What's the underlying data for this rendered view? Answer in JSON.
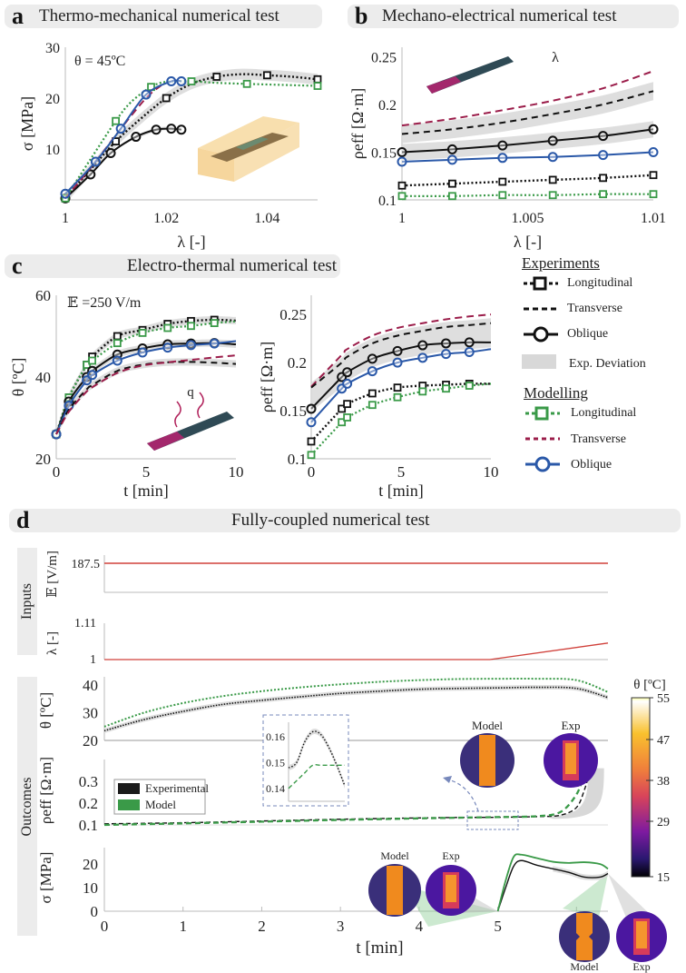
{
  "headers": {
    "a": {
      "letter": "a",
      "title": "Thermo-mechanical numerical test"
    },
    "b": {
      "letter": "b",
      "title": "Mechano-electrical numerical test"
    },
    "c": {
      "letter": "c",
      "title": "Electro-thermal numerical test"
    },
    "d": {
      "letter": "d",
      "title": "Fully-coupled numerical test"
    }
  },
  "legend": {
    "experiments_title": "Experiments",
    "modelling_title": "Modelling",
    "exp_items": [
      "Longitudinal",
      "Transverse",
      "Oblique",
      "Exp. Deviation"
    ],
    "model_items": [
      "Longitudinal",
      "Transverse",
      "Oblique"
    ]
  },
  "colors": {
    "exp": "#111111",
    "model_long": "#3a9a48",
    "model_trans": "#9b1d4a",
    "model_obl": "#2a58a8",
    "deviation": "#d8d8d8",
    "input": "#d0403a",
    "inset_box": "#7788bb"
  },
  "side_labels": {
    "inputs": "Inputs",
    "outcomes": "Outcomes"
  },
  "d_legend": [
    "Experimental",
    "Model"
  ],
  "thermo_labels": {
    "model": "Model",
    "exp": "Exp"
  },
  "colorbar": {
    "title": "θ [ºC]",
    "ticks": [
      "55",
      "47",
      "38",
      "29",
      "15"
    ]
  },
  "chart_data": [
    {
      "id": "a",
      "type": "line",
      "annotation": "θ = 45ºC",
      "xlabel": "λ [-]",
      "ylabel": "σ [MPa]",
      "xlim": [
        1,
        1.05
      ],
      "ylim": [
        0,
        30
      ],
      "xticks": [
        "1",
        "1.02",
        "1.04"
      ],
      "yticks": [
        "10",
        "20",
        "30"
      ],
      "series": [
        {
          "name": "Exp Longitudinal",
          "x": [
            1,
            1.005,
            1.01,
            1.015,
            1.02,
            1.025,
            1.03,
            1.035,
            1.04,
            1.045,
            1.05
          ],
          "y": [
            0.3,
            6,
            11.5,
            16,
            20,
            22.8,
            24.2,
            24.7,
            24.5,
            24.2,
            23.7
          ]
        },
        {
          "name": "Exp Oblique",
          "x": [
            1,
            1.005,
            1.009,
            1.014,
            1.018,
            1.021,
            1.023
          ],
          "y": [
            0.3,
            5,
            9.2,
            12.4,
            13.8,
            14,
            13.8
          ]
        },
        {
          "name": "Model Longitudinal",
          "x": [
            1,
            1.005,
            1.01,
            1.013,
            1.017,
            1.02,
            1.025,
            1.03,
            1.036,
            1.043,
            1.05
          ],
          "y": [
            0.3,
            8,
            15.5,
            19.2,
            22.2,
            23.2,
            23.3,
            23.0,
            22.8,
            22.6,
            22.4
          ]
        },
        {
          "name": "Model Transverse",
          "x": [
            1,
            1.006,
            1.011,
            1.016,
            1.019
          ],
          "y": [
            0.3,
            7.5,
            14,
            20,
            22.5
          ]
        },
        {
          "name": "Model Oblique",
          "x": [
            1,
            1.006,
            1.011,
            1.016,
            1.021,
            1.023
          ],
          "y": [
            1.2,
            7.5,
            14,
            20.7,
            23.3,
            23.3
          ]
        }
      ]
    },
    {
      "id": "b",
      "type": "line",
      "xlabel": "λ [-]",
      "ylabel": "ρ_eff [Ω·m]",
      "xlim": [
        1,
        1.01
      ],
      "ylim": [
        0.1,
        0.26
      ],
      "xticks": [
        "1",
        "1.005",
        "1.01"
      ],
      "yticks": [
        "0.1",
        "0.15",
        "0.2",
        "0.25"
      ],
      "x": [
        1,
        1.002,
        1.004,
        1.006,
        1.008,
        1.01
      ],
      "series": [
        {
          "name": "Model Transverse",
          "y": [
            0.178,
            0.185,
            0.194,
            0.204,
            0.217,
            0.235
          ]
        },
        {
          "name": "Exp Transverse",
          "y": [
            0.169,
            0.174,
            0.181,
            0.19,
            0.2,
            0.214
          ]
        },
        {
          "name": "Exp Oblique",
          "y": [
            0.15,
            0.153,
            0.157,
            0.162,
            0.167,
            0.174
          ]
        },
        {
          "name": "Model Oblique",
          "y": [
            0.14,
            0.142,
            0.144,
            0.145,
            0.147,
            0.15
          ]
        },
        {
          "name": "Exp Longitudinal",
          "y": [
            0.115,
            0.117,
            0.119,
            0.121,
            0.123,
            0.126
          ]
        },
        {
          "name": "Model Longitudinal",
          "y": [
            0.104,
            0.104,
            0.105,
            0.105,
            0.106,
            0.106
          ]
        }
      ]
    },
    {
      "id": "c1",
      "type": "line",
      "annotation": "𝔼 =250 V/m",
      "xlabel": "t [min]",
      "ylabel": "θ [ºC]",
      "xlim": [
        0,
        10
      ],
      "ylim": [
        20,
        60
      ],
      "xticks": [
        "0",
        "5",
        "10"
      ],
      "yticks": [
        "20",
        "40",
        "60"
      ],
      "x": [
        0,
        0.7,
        1.7,
        2,
        3.4,
        4.8,
        6.2,
        7.5,
        8.8,
        10
      ],
      "series": [
        {
          "name": "Exp Longitudinal",
          "y": [
            26,
            35,
            43,
            45,
            50,
            51.5,
            53,
            53.7,
            54,
            53.8
          ]
        },
        {
          "name": "Model Longitudinal",
          "y": [
            26,
            35,
            43,
            44,
            48.3,
            50.8,
            52,
            52.5,
            53.2,
            53.6
          ]
        },
        {
          "name": "Exp Oblique",
          "y": [
            26,
            34,
            40,
            41.5,
            45.5,
            47,
            48,
            48.2,
            48.3,
            48
          ]
        },
        {
          "name": "Model Oblique",
          "y": [
            26,
            33,
            39.2,
            40.5,
            44,
            46,
            47.2,
            47.8,
            48.2,
            48.8
          ]
        },
        {
          "name": "Exp Transverse",
          "y": [
            26,
            32,
            37,
            38,
            41.5,
            43,
            43.6,
            43.7,
            43.5,
            43.2
          ]
        },
        {
          "name": "Model Transverse",
          "y": [
            26,
            31.5,
            36.5,
            37.5,
            41,
            42.8,
            43.6,
            44.2,
            44.8,
            45.3
          ]
        }
      ]
    },
    {
      "id": "c2",
      "type": "line",
      "xlabel": "t [min]",
      "ylabel": "ρ_eff [Ω·m]",
      "xlim": [
        0,
        10
      ],
      "ylim": [
        0.1,
        0.27
      ],
      "xticks": [
        "0",
        "5",
        "10"
      ],
      "yticks": [
        "0.1",
        "0.15",
        "0.2",
        "0.25"
      ],
      "x": [
        0,
        1.7,
        2,
        3.4,
        4.8,
        6.2,
        7.5,
        8.8,
        10
      ],
      "series": [
        {
          "name": "Model Transverse",
          "y": [
            0.175,
            0.208,
            0.214,
            0.228,
            0.236,
            0.241,
            0.245,
            0.248,
            0.25
          ]
        },
        {
          "name": "Exp Transverse",
          "y": [
            0.174,
            0.2,
            0.206,
            0.22,
            0.228,
            0.233,
            0.237,
            0.239,
            0.241
          ]
        },
        {
          "name": "Exp Oblique",
          "y": [
            0.152,
            0.185,
            0.19,
            0.204,
            0.212,
            0.218,
            0.22,
            0.221,
            0.221
          ]
        },
        {
          "name": "Model Oblique",
          "y": [
            0.138,
            0.173,
            0.178,
            0.191,
            0.2,
            0.205,
            0.209,
            0.211,
            0.214
          ]
        },
        {
          "name": "Exp Longitudinal",
          "y": [
            0.118,
            0.152,
            0.157,
            0.168,
            0.174,
            0.176,
            0.177,
            0.178,
            0.178
          ]
        },
        {
          "name": "Model Longitudinal",
          "y": [
            0.104,
            0.138,
            0.143,
            0.156,
            0.164,
            0.17,
            0.173,
            0.176,
            0.178
          ]
        }
      ]
    },
    {
      "id": "d",
      "type": "line",
      "xlabel": "t [min]",
      "xlim": [
        0,
        6.4
      ],
      "xticks": [
        "0",
        "1",
        "2",
        "3",
        "4",
        "5",
        "6"
      ],
      "inputs": {
        "E": {
          "ylabel": "𝔼 [V/m]",
          "yticks": [
            "187.5"
          ],
          "value": 187.5
        },
        "lambda": {
          "ylabel": "λ [-]",
          "yticks": [
            "1.11",
            "1"
          ],
          "ylim": [
            1,
            1.11
          ],
          "x": [
            0,
            4.9,
            6.4
          ],
          "y": [
            1,
            1,
            1.05
          ]
        }
      },
      "theta": {
        "ylabel": "θ [ºC]",
        "ylim": [
          20,
          43
        ],
        "yticks": [
          "20",
          "30",
          "40"
        ],
        "x": [
          0,
          0.5,
          1,
          1.5,
          2,
          2.5,
          3,
          3.5,
          4,
          4.5,
          5,
          5.5,
          6,
          6.4
        ],
        "exp": [
          23.5,
          27.5,
          30.5,
          33,
          34.5,
          35.8,
          37,
          37.8,
          38.5,
          38.8,
          39,
          39.2,
          38.8,
          35.5
        ],
        "model": [
          25,
          30,
          33.5,
          36,
          37.8,
          39.2,
          40.3,
          41.2,
          41.8,
          42.2,
          42.3,
          42.3,
          41.8,
          37.5
        ]
      },
      "rho": {
        "ylabel": "ρ_eff [Ω·m]",
        "ylim": [
          0.1,
          0.4
        ],
        "yticks": [
          "0.1",
          "0.2",
          "0.3"
        ],
        "x": [
          0,
          1,
          2,
          3,
          4,
          4.5,
          5,
          5.5,
          5.8,
          6.0,
          6.1,
          6.2
        ],
        "exp": [
          0.105,
          0.11,
          0.118,
          0.126,
          0.132,
          0.134,
          0.135,
          0.138,
          0.145,
          0.18,
          0.26,
          0.38
        ],
        "model": [
          0.1,
          0.107,
          0.115,
          0.123,
          0.13,
          0.133,
          0.136,
          0.14,
          0.16,
          0.24,
          0.33,
          0.4
        ]
      },
      "rho_inset": {
        "yticks": [
          "0.16",
          "0.15",
          "0.14"
        ],
        "ylim": [
          0.135,
          0.165
        ],
        "exp": [
          0.148,
          0.15,
          0.158,
          0.162,
          0.161,
          0.156,
          0.149,
          0.141
        ],
        "model": [
          0.14,
          0.143,
          0.146,
          0.149,
          0.149,
          0.149,
          0.149,
          0.149
        ]
      },
      "sigma": {
        "ylabel": "σ [MPa]",
        "ylim": [
          0,
          27
        ],
        "yticks": [
          "0",
          "10",
          "20"
        ],
        "x": [
          5,
          5.1,
          5.2,
          5.3,
          5.5,
          5.7,
          5.9,
          6.1,
          6.3,
          6.4
        ],
        "exp": [
          0,
          10,
          19,
          21.5,
          19.5,
          18,
          16.5,
          14.5,
          14.5,
          16
        ],
        "model": [
          0,
          13,
          23,
          24,
          22.5,
          21,
          20.5,
          20.8,
          20,
          18
        ]
      }
    }
  ]
}
